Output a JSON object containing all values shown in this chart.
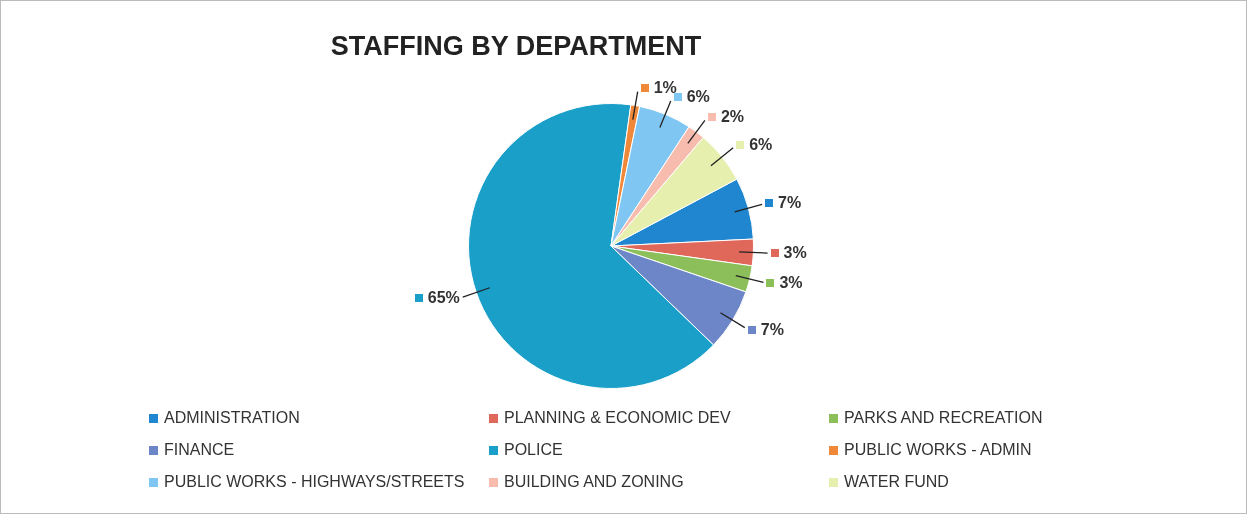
{
  "chart_data": {
    "type": "pie",
    "title": "STAFFING BY DEPARTMENT",
    "categories": [
      "ADMINISTRATION",
      "PLANNING & ECONOMIC DEV",
      "PARKS AND RECREATION",
      "FINANCE",
      "POLICE",
      "PUBLIC WORKS - ADMIN",
      "PUBLIC WORKS - HIGHWAYS/STREETS",
      "BUILDING AND ZONING",
      "WATER FUND"
    ],
    "values": [
      7,
      3,
      3,
      7,
      65,
      1,
      6,
      2,
      6
    ],
    "value_labels": [
      "7%",
      "3%",
      "3%",
      "7%",
      "65%",
      "1%",
      "6%",
      "2%",
      "6%"
    ],
    "colors": [
      "#1f86cf",
      "#e0685a",
      "#8cbf5a",
      "#6d86c8",
      "#1a9fc9",
      "#f0883a",
      "#80c6f2",
      "#f7bcae",
      "#e6efae"
    ],
    "legend": "bottom"
  }
}
